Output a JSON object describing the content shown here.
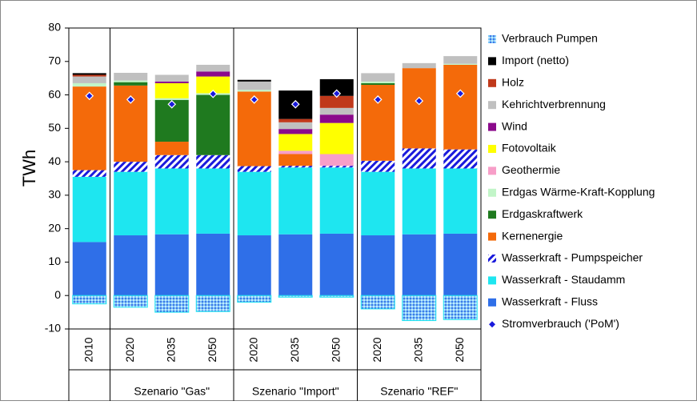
{
  "chart_data": {
    "type": "bar",
    "stacked": true,
    "ylabel": "TWh",
    "categories": [
      "2010",
      "2020",
      "2035",
      "2050",
      "2020",
      "2035",
      "2050",
      "2020",
      "2035",
      "2050"
    ],
    "groups": [
      {
        "label": null,
        "size": 1
      },
      {
        "label": "Szenario \"Gas\"",
        "size": 3
      },
      {
        "label": "Szenario \"Import\"",
        "size": 3
      },
      {
        "label": "Szenario \"REF\"",
        "size": 3
      }
    ],
    "ylim": [
      -10,
      80
    ],
    "yticks": [
      -10,
      0,
      10,
      20,
      30,
      40,
      50,
      60,
      70,
      80
    ],
    "grid": false,
    "series": [
      {
        "name": "Verbrauch Pumpen",
        "color": "#3aa0f0",
        "pattern": "dots",
        "values": [
          -2.5,
          -3.5,
          -5,
          -4.8,
          -2,
          -0.5,
          -0.5,
          -4,
          -7.5,
          -7.2
        ]
      },
      {
        "name": "Import (netto)",
        "color": "#000000",
        "values": [
          0.5,
          0,
          0,
          0,
          0.5,
          8.5,
          5,
          0,
          0,
          0
        ]
      },
      {
        "name": "Holz",
        "color": "#c0391b",
        "values": [
          0.5,
          0,
          0,
          0,
          0,
          1,
          3.6,
          0,
          0,
          0
        ]
      },
      {
        "name": "Kehrichtverbrennung",
        "color": "#c0c0c0",
        "values": [
          2,
          2.3,
          2,
          2,
          2.5,
          2,
          2,
          2.5,
          1.5,
          2.3
        ]
      },
      {
        "name": "Wind",
        "color": "#8b0a8b",
        "values": [
          0,
          0,
          0.5,
          1.5,
          0,
          1.5,
          2.5,
          0,
          0,
          0
        ]
      },
      {
        "name": "Fotovoltaik",
        "color": "#ffff00",
        "values": [
          0,
          0,
          4.5,
          5,
          0,
          5,
          9.3,
          0,
          0,
          0
        ]
      },
      {
        "name": "Geothermie",
        "color": "#f79ec8",
        "values": [
          0,
          0,
          0,
          0,
          0,
          1,
          3.5,
          0,
          0,
          0
        ]
      },
      {
        "name": "Erdgas Wärme-Kraft-Kopplung",
        "color": "#c2f5c8",
        "values": [
          1,
          0.5,
          0.5,
          0.5,
          0.5,
          0,
          0,
          0.5,
          0,
          0.3
        ]
      },
      {
        "name": "Erdgaskraftwerk",
        "color": "#1f7a1f",
        "values": [
          0,
          1,
          12.5,
          18,
          0,
          0,
          0,
          0.5,
          0,
          0
        ]
      },
      {
        "name": "Kernenergie",
        "color": "#f46a0a",
        "values": [
          25,
          22.8,
          4,
          0,
          22.3,
          3.5,
          0,
          22.7,
          24,
          25.3
        ]
      },
      {
        "name": "Wasserkraft - Pumpspeicher",
        "color": "#1a1adc",
        "pattern": "hatch",
        "values": [
          2,
          3,
          4,
          4,
          1.7,
          0.5,
          0.5,
          3.3,
          6,
          5.7
        ]
      },
      {
        "name": "Wasserkraft - Staudamm",
        "color": "#1ee6f0",
        "values": [
          19.5,
          19,
          19.7,
          19.5,
          19,
          20,
          19.8,
          19,
          19.7,
          19.5
        ]
      },
      {
        "name": "Wasserkraft - Fluss",
        "color": "#2f6fe8",
        "values": [
          16,
          18,
          18.3,
          18.5,
          18,
          18.3,
          18.5,
          18,
          18.3,
          18.5
        ]
      }
    ],
    "markers": {
      "name": "Stromverbrauch ('PoM')",
      "color": "#1a1adc",
      "values": [
        59.7,
        58.6,
        57.2,
        60.3,
        58.6,
        57.2,
        60.4,
        58.6,
        58.2,
        60.4
      ]
    }
  }
}
